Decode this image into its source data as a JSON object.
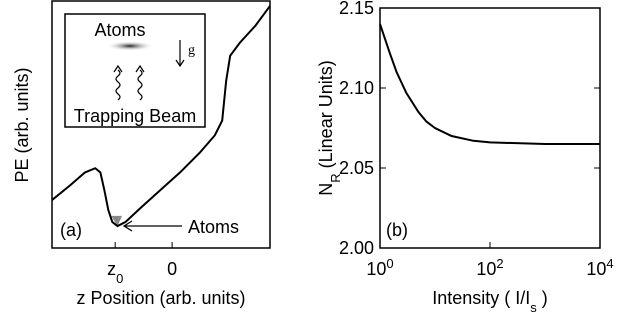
{
  "chart_data": [
    {
      "type": "line",
      "panel_label": "(a)",
      "annotation": "Atoms",
      "x_label": "z Position (arb. units)",
      "y_label": "PE (arb. units)",
      "inset": {
        "top_label": "Atoms",
        "gravity_label": "g",
        "bottom_label": "Trapping Beam"
      },
      "xlim": [
        -2.11,
        1.72
      ],
      "ylim": [
        0,
        10
      ],
      "xticks": [
        {
          "value": -1,
          "label": "z",
          "sub": "0"
        },
        0
      ],
      "x": [
        -2.11,
        -1.79,
        -1.53,
        -1.35,
        -1.26,
        -1.19,
        -1.12,
        -1.05,
        -0.96,
        -0.82,
        -0.56,
        -0.21,
        0.14,
        0.49,
        0.75,
        0.88,
        0.95,
        1.02,
        1.19,
        1.46,
        1.72
      ],
      "series": [
        {
          "color": "#000000",
          "values": [
            1.94,
            2.54,
            3.06,
            3.23,
            3.06,
            2.34,
            1.53,
            1.05,
            0.89,
            1.05,
            1.61,
            2.34,
            3.06,
            3.87,
            4.56,
            5.16,
            6.77,
            7.78,
            8.31,
            8.99,
            9.8
          ]
        }
      ]
    },
    {
      "type": "line",
      "panel_label": "(b)",
      "xscale": "log",
      "x_label": [
        {
          "text": "Intensity ( I/I"
        },
        {
          "text": "s",
          "sub": true
        },
        {
          "text": " )"
        }
      ],
      "y_label": [
        {
          "text": "N"
        },
        {
          "text": "R",
          "sub": true
        },
        {
          "text": " (Linear Units)"
        }
      ],
      "xlim": [
        1,
        10000
      ],
      "ylim": [
        2.0,
        2.15
      ],
      "xticks": [
        {
          "value": 1,
          "label": "10",
          "sup": "0"
        },
        {
          "value": 100,
          "label": "10",
          "sup": "2"
        },
        {
          "value": 10000,
          "label": "10",
          "sup": "4"
        }
      ],
      "yticks": [
        {
          "value": 2.0,
          "label": "2.00"
        },
        2.05,
        {
          "value": 2.1,
          "label": "2.10"
        },
        2.15
      ],
      "x": [
        1,
        1.5,
        2,
        3,
        5,
        7,
        10,
        20,
        50,
        100,
        1000,
        10000
      ],
      "series": [
        {
          "color": "#000000",
          "values": [
            2.14,
            2.122,
            2.11,
            2.097,
            2.085,
            2.079,
            2.075,
            2.07,
            2.067,
            2.066,
            2.065,
            2.065
          ]
        }
      ]
    }
  ]
}
